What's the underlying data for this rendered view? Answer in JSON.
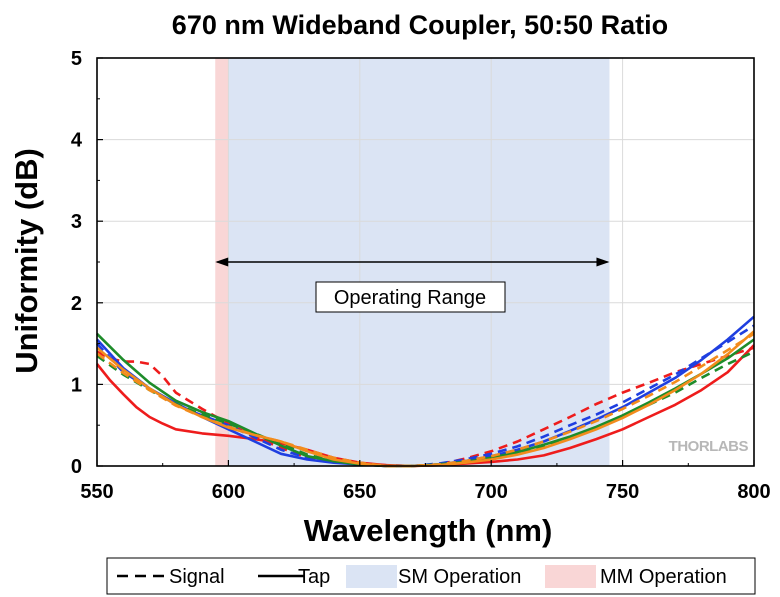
{
  "chart_data": {
    "type": "line",
    "title": "670 nm Wideband Coupler, 50:50 Ratio",
    "xlabel": "Wavelength (nm)",
    "ylabel": "Uniformity (dB)",
    "xlim": [
      550,
      800
    ],
    "ylim": [
      0,
      5
    ],
    "xticks": [
      550,
      600,
      650,
      700,
      750,
      800
    ],
    "yticks": [
      0,
      1,
      2,
      3,
      4,
      5
    ],
    "grid": true,
    "bands": [
      {
        "name": "MM Operation",
        "x0": 595,
        "x1": 600,
        "color": "#f9d6d6"
      },
      {
        "name": "SM Operation",
        "x0": 600,
        "x1": 745,
        "color": "#dbe4f4"
      }
    ],
    "annotation": {
      "text": "Operating Range",
      "x0": 595,
      "x1": 745,
      "y": 2.5
    },
    "legend": {
      "placement": "bottom",
      "items": [
        {
          "label": "Signal",
          "style": "dashed"
        },
        {
          "label": "Tap",
          "style": "solid"
        },
        {
          "label": "SM Operation",
          "style": "patch",
          "color": "#dbe4f4"
        },
        {
          "label": "MM Operation",
          "style": "patch",
          "color": "#f9d6d6"
        }
      ]
    },
    "series": [
      {
        "color": "#ee1c1c",
        "style": "solid",
        "points": [
          [
            550,
            1.25
          ],
          [
            555,
            1.05
          ],
          [
            560,
            0.88
          ],
          [
            565,
            0.72
          ],
          [
            570,
            0.6
          ],
          [
            575,
            0.52
          ],
          [
            580,
            0.45
          ],
          [
            590,
            0.4
          ],
          [
            600,
            0.37
          ],
          [
            610,
            0.33
          ],
          [
            620,
            0.28
          ],
          [
            630,
            0.2
          ],
          [
            640,
            0.1
          ],
          [
            650,
            0.04
          ],
          [
            660,
            0.01
          ],
          [
            670,
            0.0
          ],
          [
            680,
            0.01
          ],
          [
            690,
            0.03
          ],
          [
            700,
            0.05
          ],
          [
            710,
            0.08
          ],
          [
            720,
            0.13
          ],
          [
            730,
            0.22
          ],
          [
            740,
            0.33
          ],
          [
            750,
            0.45
          ],
          [
            760,
            0.6
          ],
          [
            770,
            0.75
          ],
          [
            780,
            0.93
          ],
          [
            790,
            1.15
          ],
          [
            800,
            1.48
          ]
        ]
      },
      {
        "color": "#ee1c1c",
        "style": "dashed",
        "points": [
          [
            550,
            1.4
          ],
          [
            555,
            1.32
          ],
          [
            560,
            1.28
          ],
          [
            565,
            1.28
          ],
          [
            570,
            1.25
          ],
          [
            575,
            1.1
          ],
          [
            580,
            0.9
          ],
          [
            590,
            0.7
          ],
          [
            600,
            0.52
          ],
          [
            610,
            0.36
          ],
          [
            620,
            0.22
          ],
          [
            630,
            0.1
          ],
          [
            640,
            0.05
          ],
          [
            650,
            0.02
          ],
          [
            660,
            0.01
          ],
          [
            670,
            0.0
          ],
          [
            680,
            0.02
          ],
          [
            690,
            0.09
          ],
          [
            700,
            0.18
          ],
          [
            710,
            0.3
          ],
          [
            720,
            0.45
          ],
          [
            730,
            0.6
          ],
          [
            740,
            0.76
          ],
          [
            750,
            0.9
          ],
          [
            760,
            1.02
          ],
          [
            770,
            1.15
          ],
          [
            780,
            1.25
          ],
          [
            790,
            1.35
          ],
          [
            800,
            1.45
          ]
        ]
      },
      {
        "color": "#1f3fe0",
        "style": "solid",
        "points": [
          [
            550,
            1.55
          ],
          [
            560,
            1.2
          ],
          [
            570,
            0.95
          ],
          [
            580,
            0.77
          ],
          [
            590,
            0.6
          ],
          [
            600,
            0.45
          ],
          [
            610,
            0.3
          ],
          [
            620,
            0.15
          ],
          [
            630,
            0.08
          ],
          [
            640,
            0.04
          ],
          [
            650,
            0.02
          ],
          [
            660,
            0.0
          ],
          [
            670,
            0.0
          ],
          [
            680,
            0.02
          ],
          [
            690,
            0.06
          ],
          [
            700,
            0.12
          ],
          [
            710,
            0.2
          ],
          [
            720,
            0.3
          ],
          [
            730,
            0.43
          ],
          [
            740,
            0.57
          ],
          [
            750,
            0.72
          ],
          [
            760,
            0.9
          ],
          [
            770,
            1.08
          ],
          [
            780,
            1.3
          ],
          [
            790,
            1.55
          ],
          [
            800,
            1.83
          ]
        ]
      },
      {
        "color": "#1f3fe0",
        "style": "dashed",
        "points": [
          [
            550,
            1.5
          ],
          [
            560,
            1.15
          ],
          [
            570,
            0.95
          ],
          [
            580,
            0.75
          ],
          [
            590,
            0.62
          ],
          [
            600,
            0.5
          ],
          [
            610,
            0.35
          ],
          [
            620,
            0.2
          ],
          [
            630,
            0.1
          ],
          [
            640,
            0.05
          ],
          [
            650,
            0.02
          ],
          [
            660,
            0.0
          ],
          [
            670,
            0.0
          ],
          [
            680,
            0.03
          ],
          [
            690,
            0.08
          ],
          [
            700,
            0.15
          ],
          [
            710,
            0.24
          ],
          [
            720,
            0.36
          ],
          [
            730,
            0.5
          ],
          [
            740,
            0.63
          ],
          [
            750,
            0.78
          ],
          [
            760,
            0.95
          ],
          [
            770,
            1.12
          ],
          [
            780,
            1.32
          ],
          [
            790,
            1.52
          ],
          [
            800,
            1.72
          ]
        ]
      },
      {
        "color": "#1e8c2a",
        "style": "solid",
        "points": [
          [
            550,
            1.62
          ],
          [
            560,
            1.3
          ],
          [
            570,
            1.02
          ],
          [
            580,
            0.8
          ],
          [
            590,
            0.66
          ],
          [
            600,
            0.55
          ],
          [
            610,
            0.4
          ],
          [
            620,
            0.25
          ],
          [
            630,
            0.12
          ],
          [
            640,
            0.06
          ],
          [
            650,
            0.02
          ],
          [
            660,
            0.0
          ],
          [
            670,
            0.0
          ],
          [
            680,
            0.02
          ],
          [
            690,
            0.05
          ],
          [
            700,
            0.1
          ],
          [
            710,
            0.17
          ],
          [
            720,
            0.26
          ],
          [
            730,
            0.36
          ],
          [
            740,
            0.48
          ],
          [
            750,
            0.62
          ],
          [
            760,
            0.78
          ],
          [
            770,
            0.95
          ],
          [
            780,
            1.13
          ],
          [
            790,
            1.32
          ],
          [
            800,
            1.55
          ]
        ]
      },
      {
        "color": "#1e8c2a",
        "style": "dashed",
        "points": [
          [
            550,
            1.35
          ],
          [
            560,
            1.12
          ],
          [
            570,
            0.93
          ],
          [
            580,
            0.76
          ],
          [
            590,
            0.63
          ],
          [
            600,
            0.52
          ],
          [
            610,
            0.4
          ],
          [
            620,
            0.27
          ],
          [
            630,
            0.14
          ],
          [
            640,
            0.06
          ],
          [
            650,
            0.02
          ],
          [
            660,
            0.0
          ],
          [
            670,
            0.0
          ],
          [
            680,
            0.02
          ],
          [
            690,
            0.05
          ],
          [
            700,
            0.1
          ],
          [
            710,
            0.16
          ],
          [
            720,
            0.25
          ],
          [
            730,
            0.35
          ],
          [
            740,
            0.47
          ],
          [
            750,
            0.6
          ],
          [
            760,
            0.75
          ],
          [
            770,
            0.9
          ],
          [
            780,
            1.08
          ],
          [
            790,
            1.25
          ],
          [
            800,
            1.4
          ]
        ]
      },
      {
        "color": "#f28c1c",
        "style": "solid",
        "points": [
          [
            550,
            1.45
          ],
          [
            560,
            1.18
          ],
          [
            570,
            0.95
          ],
          [
            580,
            0.75
          ],
          [
            590,
            0.6
          ],
          [
            600,
            0.47
          ],
          [
            610,
            0.38
          ],
          [
            620,
            0.3
          ],
          [
            630,
            0.18
          ],
          [
            640,
            0.08
          ],
          [
            650,
            0.03
          ],
          [
            660,
            0.0
          ],
          [
            670,
            0.0
          ],
          [
            680,
            0.01
          ],
          [
            690,
            0.04
          ],
          [
            700,
            0.08
          ],
          [
            710,
            0.14
          ],
          [
            720,
            0.22
          ],
          [
            730,
            0.33
          ],
          [
            740,
            0.45
          ],
          [
            750,
            0.59
          ],
          [
            760,
            0.75
          ],
          [
            770,
            0.93
          ],
          [
            780,
            1.13
          ],
          [
            790,
            1.37
          ],
          [
            800,
            1.65
          ]
        ]
      },
      {
        "color": "#f28c1c",
        "style": "dashed",
        "points": [
          [
            550,
            1.38
          ],
          [
            560,
            1.14
          ],
          [
            570,
            0.93
          ],
          [
            580,
            0.74
          ],
          [
            590,
            0.6
          ],
          [
            600,
            0.48
          ],
          [
            610,
            0.38
          ],
          [
            620,
            0.3
          ],
          [
            630,
            0.2
          ],
          [
            640,
            0.1
          ],
          [
            650,
            0.04
          ],
          [
            660,
            0.0
          ],
          [
            670,
            0.0
          ],
          [
            680,
            0.02
          ],
          [
            690,
            0.06
          ],
          [
            700,
            0.12
          ],
          [
            710,
            0.2
          ],
          [
            720,
            0.3
          ],
          [
            730,
            0.42
          ],
          [
            740,
            0.55
          ],
          [
            750,
            0.7
          ],
          [
            760,
            0.86
          ],
          [
            770,
            1.03
          ],
          [
            780,
            1.22
          ],
          [
            790,
            1.42
          ],
          [
            800,
            1.62
          ]
        ]
      }
    ]
  },
  "logo": {
    "text": "THORLABS"
  }
}
